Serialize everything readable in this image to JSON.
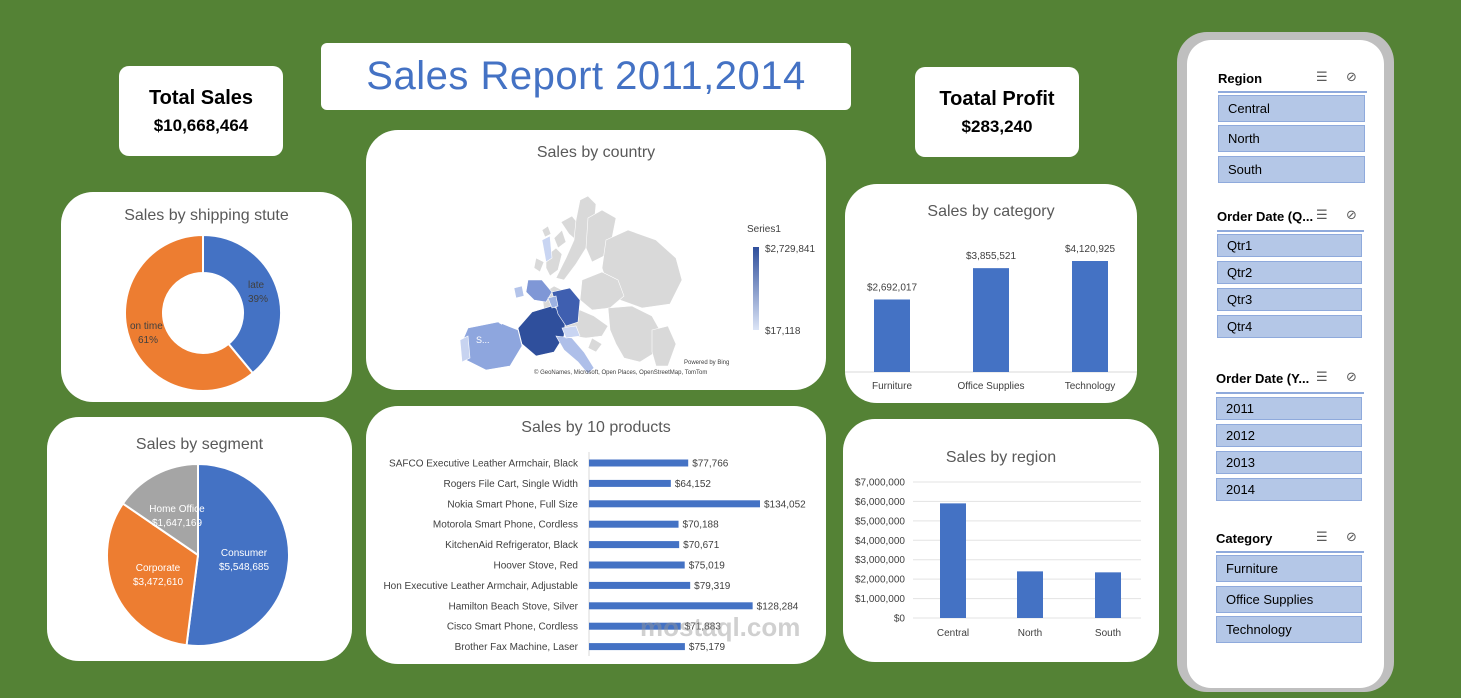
{
  "report_title": "Sales Report 2011,2014",
  "kpis": {
    "total_sales_label": "Total Sales",
    "total_sales_value": "$10,668,464",
    "profit_label": "Toatal Profit",
    "profit_value": "$283,240"
  },
  "watermark": "mostaql.com",
  "colors": {
    "background": "#548235",
    "blue": "#4472c4",
    "orange": "#ed7d31",
    "gray": "#a5a5a5"
  },
  "chart_data": [
    {
      "id": "shipping",
      "type": "pie",
      "title": "Sales by shipping stute",
      "donut": true,
      "slices": [
        {
          "label": "late",
          "percent": "39%",
          "value": 39,
          "color": "#4472c4"
        },
        {
          "label": "on time",
          "percent": "61%",
          "value": 61,
          "color": "#ed7d31"
        }
      ]
    },
    {
      "id": "segment",
      "type": "pie",
      "title": "Sales by segment",
      "slices": [
        {
          "label": "Consumer",
          "display": "$5,548,685",
          "value": 5548685,
          "color": "#4472c4"
        },
        {
          "label": "Corporate",
          "display": "$3,472,610",
          "value": 3472610,
          "color": "#ed7d31"
        },
        {
          "label": "Home Office",
          "display": "$1,647,169",
          "value": 1647169,
          "color": "#a5a5a5"
        }
      ]
    },
    {
      "id": "country",
      "type": "map",
      "title": "Sales by country",
      "legend_series": "Series1",
      "legend_max": "$2,729,841",
      "legend_min": "$17,118",
      "map_labels": [
        "S...",
        "$2...",
        "S..."
      ],
      "powered_by": "Powered by Bing",
      "attribution": "© GeoNames, Microsoft, Open Places, OpenStreetMap, TomTom"
    },
    {
      "id": "products",
      "type": "bar",
      "orientation": "horizontal",
      "title": "Sales by 10 products",
      "categories": [
        "SAFCO Executive Leather Armchair, Black",
        "Rogers File Cart, Single Width",
        "Nokia Smart Phone, Full Size",
        "Motorola Smart Phone, Cordless",
        "KitchenAid Refrigerator, Black",
        "Hoover Stove, Red",
        "Hon Executive Leather Armchair, Adjustable",
        "Hamilton Beach Stove, Silver",
        "Cisco Smart Phone, Cordless",
        "Brother Fax Machine, Laser"
      ],
      "values": [
        77766,
        64152,
        134052,
        70188,
        70671,
        75019,
        79319,
        128284,
        71883,
        75179
      ],
      "labels": [
        "$77,766",
        "$64,152",
        "$134,052",
        "$70,188",
        "$70,671",
        "$75,019",
        "$79,319",
        "$128,284",
        "$71,883",
        "$75,179"
      ]
    },
    {
      "id": "category",
      "type": "bar",
      "title": "Sales by category",
      "categories": [
        "Furniture",
        "Office Supplies",
        "Technology"
      ],
      "values": [
        2692017,
        3855521,
        4120925
      ],
      "labels": [
        "$2,692,017",
        "$3,855,521",
        "$4,120,925"
      ]
    },
    {
      "id": "region",
      "type": "bar",
      "title": "Sales by region",
      "categories": [
        "Central",
        "North",
        "South"
      ],
      "values": [
        5900000,
        2400000,
        2350000
      ],
      "ylim": [
        0,
        7000000
      ],
      "yticks": [
        "$0",
        "$1,000,000",
        "$2,000,000",
        "$3,000,000",
        "$4,000,000",
        "$5,000,000",
        "$6,000,000",
        "$7,000,000"
      ],
      "grid": true
    }
  ],
  "slicers": [
    {
      "title": "Region",
      "items": [
        "Central",
        "North",
        "South"
      ]
    },
    {
      "title": "Order Date (Q...",
      "items": [
        "Qtr1",
        "Qtr2",
        "Qtr3",
        "Qtr4"
      ]
    },
    {
      "title": "Order Date (Y...",
      "items": [
        "2011",
        "2012",
        "2013",
        "2014"
      ]
    },
    {
      "title": "Category",
      "items": [
        "Furniture",
        "Office Supplies",
        "Technology"
      ]
    }
  ],
  "slicer_icons": {
    "multiselect": "☰",
    "clear": "⊘"
  }
}
